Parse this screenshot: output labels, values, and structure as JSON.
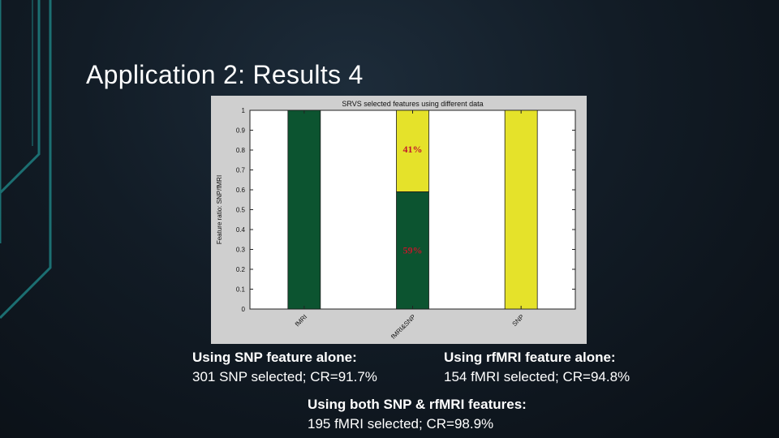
{
  "slide": {
    "title": "Application 2: Results 4"
  },
  "chart_data": {
    "type": "bar",
    "stacked": true,
    "title": "SRVS selected features using different data",
    "xlabel": "",
    "ylabel": "Feature ratio: SNP/fMRI",
    "ylim": [
      0,
      1
    ],
    "yticks": [
      "0",
      "0.1",
      "0.2",
      "0.3",
      "0.4",
      "0.5",
      "0.6",
      "0.7",
      "0.8",
      "0.9",
      "1"
    ],
    "categories": [
      "fMRI",
      "fMRI&SNP",
      "SNP"
    ],
    "series": [
      {
        "values": [
          1.0,
          0.59,
          0.0
        ],
        "color": "#0c5430"
      },
      {
        "values": [
          0.0,
          0.41,
          1.0
        ],
        "color": "#e5e22a"
      }
    ],
    "annotations": [
      {
        "text": "41%",
        "category": "fMRI&SNP",
        "y": 0.805,
        "color": "#c0182a"
      },
      {
        "text": "59%",
        "category": "fMRI&SNP",
        "y": 0.295,
        "color": "#c0182a"
      }
    ],
    "grid": false
  },
  "captions": [
    {
      "head": "Using SNP feature alone:",
      "body": "301 SNP selected; CR=91.7%"
    },
    {
      "head": "Using rfMRI feature alone:",
      "body": "154 fMRI selected; CR=94.8%"
    },
    {
      "head": "Using both SNP & rfMRI features:",
      "body": "195 fMRI selected; CR=98.9%"
    }
  ]
}
